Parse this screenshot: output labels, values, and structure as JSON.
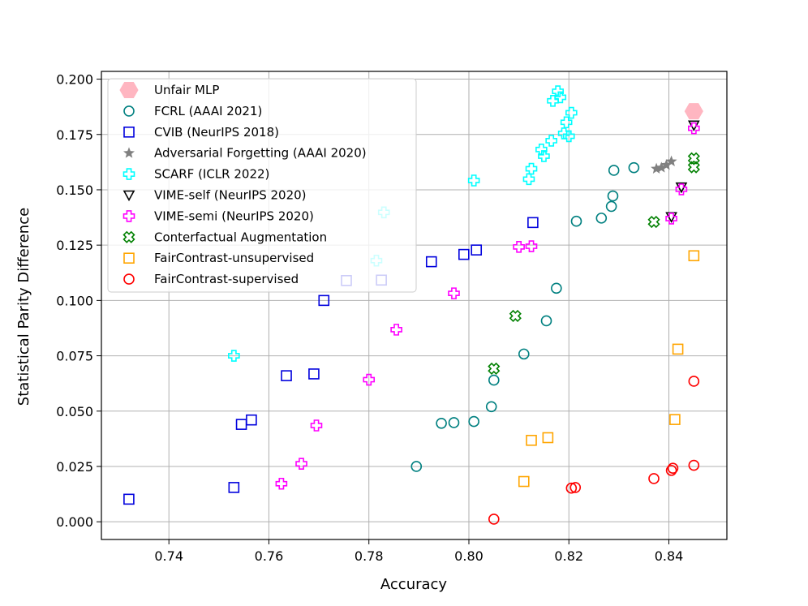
{
  "chart_data": {
    "type": "scatter",
    "title": "",
    "xlabel": "Accuracy",
    "ylabel": "Statistical Parity Difference",
    "xlim": [
      0.7265,
      0.8516
    ],
    "ylim": [
      -0.008,
      0.2035
    ],
    "x_ticks": [
      "0.74",
      "0.76",
      "0.78",
      "0.80",
      "0.82",
      "0.84"
    ],
    "y_ticks": [
      "0.000",
      "0.025",
      "0.050",
      "0.075",
      "0.100",
      "0.125",
      "0.150",
      "0.175",
      "0.200"
    ],
    "grid": true,
    "legend_position": "upper left",
    "series": [
      {
        "name": "Unfair MLP",
        "marker": "hexagon",
        "color": "#ffb6c1",
        "points": [
          [
            0.845,
            0.1855
          ]
        ]
      },
      {
        "name": "FCRL (AAAI 2021)",
        "marker": "circle",
        "color": "#008080",
        "points": [
          [
            0.7895,
            0.025
          ],
          [
            0.7945,
            0.0445
          ],
          [
            0.797,
            0.0448
          ],
          [
            0.801,
            0.0453
          ],
          [
            0.8045,
            0.052
          ],
          [
            0.805,
            0.064
          ],
          [
            0.811,
            0.0758
          ],
          [
            0.8155,
            0.0908
          ],
          [
            0.8175,
            0.1055
          ],
          [
            0.8215,
            0.1358
          ],
          [
            0.8265,
            0.1372
          ],
          [
            0.8285,
            0.1425
          ],
          [
            0.8288,
            0.1472
          ],
          [
            0.829,
            0.1588
          ],
          [
            0.833,
            0.16
          ]
        ]
      },
      {
        "name": "CVIB (NeurIPS 2018)",
        "marker": "square",
        "color": "#0000dd",
        "points": [
          [
            0.732,
            0.0102
          ],
          [
            0.753,
            0.0155
          ],
          [
            0.7545,
            0.044
          ],
          [
            0.7565,
            0.046
          ],
          [
            0.7635,
            0.066
          ],
          [
            0.769,
            0.0668
          ],
          [
            0.771,
            0.1
          ],
          [
            0.7755,
            0.109
          ],
          [
            0.7825,
            0.1092
          ],
          [
            0.7925,
            0.1175
          ],
          [
            0.799,
            0.1208
          ],
          [
            0.8015,
            0.1228
          ],
          [
            0.8128,
            0.1352
          ]
        ]
      },
      {
        "name": "Adversarial Forgetting (AAAI 2020)",
        "marker": "star",
        "color": "#808080",
        "points": [
          [
            0.8375,
            0.1595
          ],
          [
            0.8385,
            0.16
          ],
          [
            0.8395,
            0.1612
          ],
          [
            0.8405,
            0.1628
          ]
        ]
      },
      {
        "name": "SCARF (ICLR 2022)",
        "marker": "plus",
        "color": "#00ffff",
        "points": [
          [
            0.753,
            0.075
          ],
          [
            0.7815,
            0.118
          ],
          [
            0.783,
            0.1398
          ],
          [
            0.801,
            0.1542
          ],
          [
            0.812,
            0.1548
          ],
          [
            0.8125,
            0.1595
          ],
          [
            0.8145,
            0.1682
          ],
          [
            0.815,
            0.1652
          ],
          [
            0.8165,
            0.1722
          ],
          [
            0.8168,
            0.1902
          ],
          [
            0.8178,
            0.1945
          ],
          [
            0.8183,
            0.1918
          ],
          [
            0.819,
            0.1755
          ],
          [
            0.8195,
            0.1805
          ],
          [
            0.82,
            0.1742
          ],
          [
            0.8205,
            0.1848
          ]
        ]
      },
      {
        "name": "VIME-self (NeurIPS 2020)",
        "marker": "triangle_down",
        "color": "#000000",
        "points": [
          [
            0.8405,
            0.1378
          ],
          [
            0.8425,
            0.1512
          ],
          [
            0.845,
            0.1792
          ]
        ]
      },
      {
        "name": "VIME-semi (NeurIPS 2020)",
        "marker": "plus",
        "color": "#ff00ff",
        "points": [
          [
            0.7625,
            0.0172
          ],
          [
            0.7665,
            0.0262
          ],
          [
            0.7695,
            0.0435
          ],
          [
            0.78,
            0.0642
          ],
          [
            0.7855,
            0.0868
          ],
          [
            0.797,
            0.1032
          ],
          [
            0.81,
            0.1242
          ],
          [
            0.8125,
            0.1245
          ],
          [
            0.8405,
            0.137
          ],
          [
            0.8425,
            0.1502
          ],
          [
            0.845,
            0.1778
          ]
        ]
      },
      {
        "name": "Conterfactual Augmentation",
        "marker": "x",
        "color": "#008000",
        "points": [
          [
            0.805,
            0.0692
          ],
          [
            0.8093,
            0.093
          ],
          [
            0.837,
            0.1355
          ],
          [
            0.845,
            0.1602
          ],
          [
            0.845,
            0.1642
          ]
        ]
      },
      {
        "name": "FairContrast-unsupervised",
        "marker": "square",
        "color": "#ffa500",
        "points": [
          [
            0.811,
            0.0182
          ],
          [
            0.8125,
            0.0368
          ],
          [
            0.8158,
            0.038
          ],
          [
            0.8412,
            0.0462
          ],
          [
            0.8418,
            0.078
          ],
          [
            0.845,
            0.1202
          ]
        ]
      },
      {
        "name": "FairContrast-supervised",
        "marker": "circle",
        "color": "#ff0000",
        "points": [
          [
            0.805,
            0.0012
          ],
          [
            0.8205,
            0.0152
          ],
          [
            0.8213,
            0.0155
          ],
          [
            0.837,
            0.0195
          ],
          [
            0.8405,
            0.0232
          ],
          [
            0.8408,
            0.0242
          ],
          [
            0.845,
            0.0255
          ],
          [
            0.845,
            0.0635
          ]
        ]
      }
    ]
  }
}
